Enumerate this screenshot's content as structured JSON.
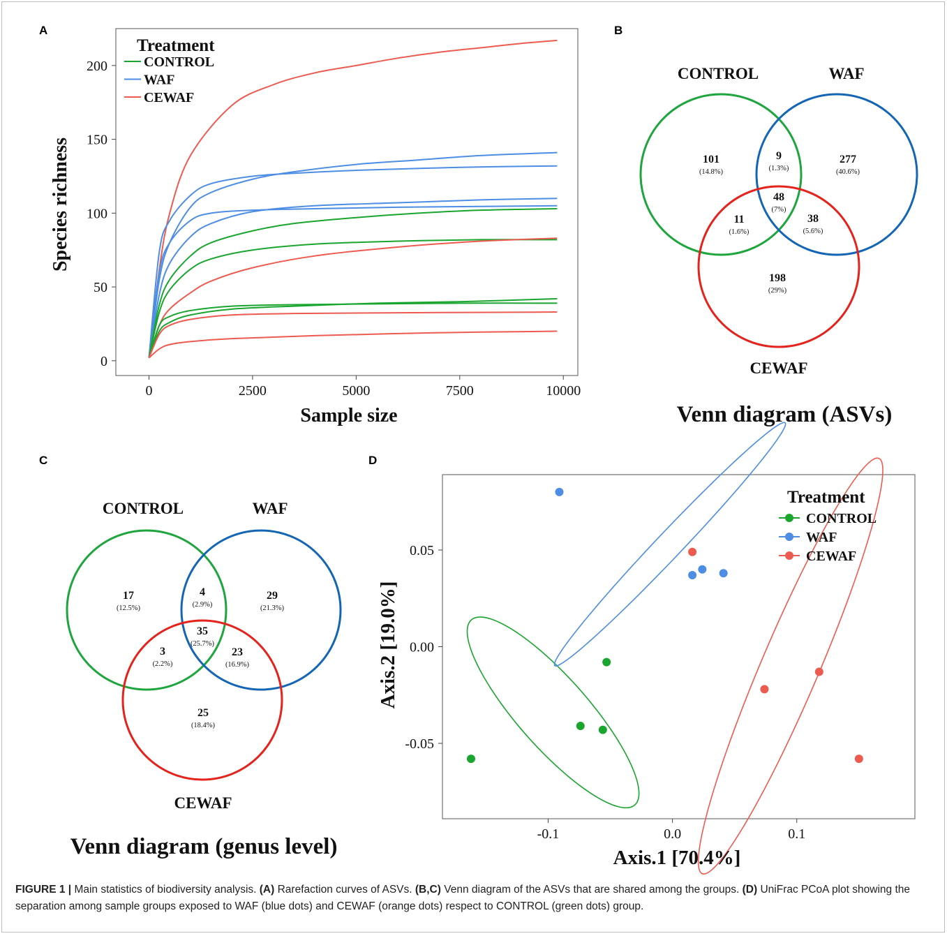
{
  "panels": {
    "A": {
      "letter": "A",
      "chart_data": {
        "type": "line",
        "xlabel": "Sample size",
        "ylabel": "Species richness",
        "xlim": [
          -800,
          10350
        ],
        "ylim": [
          -10,
          225
        ],
        "x_ticks": [
          0,
          2500,
          5000,
          7500,
          10000
        ],
        "y_ticks": [
          0,
          50,
          100,
          150,
          200
        ],
        "x_tick_labels": [
          "0",
          "2500",
          "5000",
          "7500",
          "10000"
        ],
        "y_tick_labels": [
          "0",
          "50",
          "100",
          "150",
          "200"
        ],
        "grid": false,
        "legend": {
          "title": "Treatment",
          "placement": "top-left",
          "items": [
            {
              "label": "CONTROL",
              "color": "#1aa52e"
            },
            {
              "label": "WAF",
              "color": "#4d8de4"
            },
            {
              "label": "CEWAF",
              "color": "#ec5b4f"
            }
          ]
        },
        "series": [
          {
            "group": "CEWAF",
            "color": "#ec5b4f",
            "points": [
              [
                0,
                2
              ],
              [
                250,
                62
              ],
              [
                500,
                100
              ],
              [
                1000,
                139
              ],
              [
                2000,
                173
              ],
              [
                3000,
                187
              ],
              [
                4000,
                195
              ],
              [
                5000,
                200
              ],
              [
                6000,
                205
              ],
              [
                7000,
                209
              ],
              [
                8000,
                212
              ],
              [
                9000,
                215
              ],
              [
                9850,
                217
              ]
            ]
          },
          {
            "group": "WAF",
            "color": "#4d8de4",
            "points": [
              [
                0,
                2
              ],
              [
                250,
                55
              ],
              [
                500,
                80
              ],
              [
                1000,
                104
              ],
              [
                1500,
                114
              ],
              [
                2500,
                123
              ],
              [
                3500,
                128
              ],
              [
                5000,
                133
              ],
              [
                6500,
                136
              ],
              [
                8000,
                139
              ],
              [
                9850,
                141
              ]
            ]
          },
          {
            "group": "WAF",
            "color": "#4d8de4",
            "points": [
              [
                0,
                2
              ],
              [
                250,
                74
              ],
              [
                500,
                95
              ],
              [
                1000,
                112
              ],
              [
                1500,
                120
              ],
              [
                2500,
                125
              ],
              [
                3500,
                127
              ],
              [
                5000,
                129
              ],
              [
                7500,
                131
              ],
              [
                9850,
                132
              ]
            ]
          },
          {
            "group": "WAF",
            "color": "#4d8de4",
            "points": [
              [
                0,
                2
              ],
              [
                250,
                45
              ],
              [
                500,
                66
              ],
              [
                1000,
                84
              ],
              [
                1500,
                93
              ],
              [
                2500,
                101
              ],
              [
                4000,
                105
              ],
              [
                6000,
                107
              ],
              [
                8000,
                109
              ],
              [
                9850,
                110
              ]
            ]
          },
          {
            "group": "WAF",
            "color": "#4d8de4",
            "points": [
              [
                0,
                2
              ],
              [
                250,
                60
              ],
              [
                500,
                80
              ],
              [
                1000,
                95
              ],
              [
                1500,
                100
              ],
              [
                2500,
                102
              ],
              [
                4000,
                103
              ],
              [
                6000,
                104
              ],
              [
                9850,
                105
              ]
            ]
          },
          {
            "group": "CONTROL",
            "color": "#1aa52e",
            "points": [
              [
                0,
                2
              ],
              [
                250,
                38
              ],
              [
                500,
                55
              ],
              [
                1000,
                71
              ],
              [
                1500,
                80
              ],
              [
                2500,
                88
              ],
              [
                3500,
                93
              ],
              [
                5000,
                97
              ],
              [
                6500,
                100
              ],
              [
                8000,
                102
              ],
              [
                9850,
                103
              ]
            ]
          },
          {
            "group": "CONTROL",
            "color": "#1aa52e",
            "points": [
              [
                0,
                2
              ],
              [
                250,
                33
              ],
              [
                500,
                48
              ],
              [
                1000,
                62
              ],
              [
                1500,
                69
              ],
              [
                2500,
                75
              ],
              [
                4000,
                79
              ],
              [
                6000,
                81
              ],
              [
                8000,
                82
              ],
              [
                9850,
                82
              ]
            ]
          },
          {
            "group": "CEWAF",
            "color": "#ec5b4f",
            "points": [
              [
                0,
                2
              ],
              [
                250,
                24
              ],
              [
                500,
                35
              ],
              [
                1000,
                46
              ],
              [
                1500,
                54
              ],
              [
                2500,
                63
              ],
              [
                4000,
                71
              ],
              [
                6000,
                77
              ],
              [
                8000,
                81
              ],
              [
                9850,
                83
              ]
            ]
          },
          {
            "group": "CONTROL",
            "color": "#1aa52e",
            "points": [
              [
                0,
                2
              ],
              [
                250,
                20
              ],
              [
                500,
                26
              ],
              [
                1000,
                31
              ],
              [
                2000,
                35
              ],
              [
                3500,
                37
              ],
              [
                5500,
                39
              ],
              [
                7500,
                40
              ],
              [
                9850,
                42
              ]
            ]
          },
          {
            "group": "CONTROL",
            "color": "#1aa52e",
            "points": [
              [
                0,
                2
              ],
              [
                250,
                24
              ],
              [
                500,
                30
              ],
              [
                1000,
                34
              ],
              [
                2000,
                37
              ],
              [
                3500,
                38
              ],
              [
                5500,
                38.5
              ],
              [
                7500,
                39
              ],
              [
                9850,
                39
              ]
            ]
          },
          {
            "group": "CEWAF",
            "color": "#ec5b4f",
            "points": [
              [
                0,
                2
              ],
              [
                250,
                18
              ],
              [
                500,
                24
              ],
              [
                1000,
                28
              ],
              [
                2000,
                31
              ],
              [
                3500,
                32
              ],
              [
                6000,
                32.5
              ],
              [
                9850,
                33
              ]
            ]
          },
          {
            "group": "CEWAF",
            "color": "#ec5b4f",
            "points": [
              [
                0,
                2
              ],
              [
                250,
                8
              ],
              [
                500,
                11
              ],
              [
                1000,
                13
              ],
              [
                2000,
                15
              ],
              [
                4000,
                17
              ],
              [
                7000,
                19
              ],
              [
                9850,
                20
              ]
            ]
          }
        ]
      }
    },
    "B": {
      "letter": "B",
      "labels": {
        "control": "CONTROL",
        "waf": "WAF",
        "cewaf": "CEWAF"
      },
      "title": "Venn diagram (ASVs)",
      "colors": {
        "control": "#1fa53d",
        "waf": "#1565b5",
        "cewaf": "#e3231c"
      },
      "regions": [
        {
          "id": "control-only",
          "count": "101",
          "pct": "(14.8%)"
        },
        {
          "id": "control-waf",
          "count": "9",
          "pct": "(1.3%)"
        },
        {
          "id": "waf-only",
          "count": "277",
          "pct": "(40.6%)"
        },
        {
          "id": "all-three",
          "count": "48",
          "pct": "(7%)"
        },
        {
          "id": "control-cewaf",
          "count": "11",
          "pct": "(1.6%)"
        },
        {
          "id": "waf-cewaf",
          "count": "38",
          "pct": "(5.6%)"
        },
        {
          "id": "cewaf-only",
          "count": "198",
          "pct": "(29%)"
        }
      ]
    },
    "C": {
      "letter": "C",
      "labels": {
        "control": "CONTROL",
        "waf": "WAF",
        "cewaf": "CEWAF"
      },
      "title": "Venn diagram (genus level)",
      "colors": {
        "control": "#1fa53d",
        "waf": "#1565b5",
        "cewaf": "#e3231c"
      },
      "regions": [
        {
          "id": "control-only",
          "count": "17",
          "pct": "(12.5%)"
        },
        {
          "id": "control-waf",
          "count": "4",
          "pct": "(2.9%)"
        },
        {
          "id": "waf-only",
          "count": "29",
          "pct": "(21.3%)"
        },
        {
          "id": "all-three",
          "count": "35",
          "pct": "(25.7%)"
        },
        {
          "id": "control-cewaf",
          "count": "3",
          "pct": "(2.2%)"
        },
        {
          "id": "waf-cewaf",
          "count": "23",
          "pct": "(16.9%)"
        },
        {
          "id": "cewaf-only",
          "count": "25",
          "pct": "(18.4%)"
        }
      ]
    },
    "D": {
      "letter": "D",
      "chart_data": {
        "type": "scatter",
        "xlabel": "Axis.1 [70.4%]",
        "ylabel": "Axis.2 [19.0%]",
        "xlim": [
          -0.185,
          0.195
        ],
        "ylim": [
          -0.089,
          0.089
        ],
        "x_ticks": [
          -0.1,
          0.0,
          0.1
        ],
        "y_ticks": [
          -0.05,
          0.0,
          0.05
        ],
        "x_tick_labels": [
          "-0.1",
          "0.0",
          "0.1"
        ],
        "y_tick_labels": [
          "-0.05",
          "0.00",
          "0.05"
        ],
        "grid": false,
        "legend": {
          "title": "Treatment",
          "placement": "top-right",
          "items": [
            {
              "label": "CONTROL",
              "color": "#1aa52e"
            },
            {
              "label": "WAF",
              "color": "#4d8de4"
            },
            {
              "label": "CEWAF",
              "color": "#ec5b4f"
            }
          ]
        },
        "series": [
          {
            "name": "CONTROL",
            "color": "#1aa52e",
            "points": [
              [
                -0.162,
                -0.058
              ],
              [
                -0.074,
                -0.041
              ],
              [
                -0.056,
                -0.043
              ],
              [
                -0.053,
                -0.008
              ]
            ]
          },
          {
            "name": "WAF",
            "color": "#4d8de4",
            "points": [
              [
                -0.091,
                0.08
              ],
              [
                0.016,
                0.037
              ],
              [
                0.024,
                0.04
              ],
              [
                0.041,
                0.038
              ]
            ]
          },
          {
            "name": "CEWAF",
            "color": "#ec5b4f",
            "points": [
              [
                0.016,
                0.049
              ],
              [
                0.074,
                -0.022
              ],
              [
                0.118,
                -0.013
              ],
              [
                0.15,
                -0.058
              ]
            ]
          }
        ],
        "ellipses": [
          {
            "group": "CONTROL",
            "color": "#1aa52e",
            "cx": -0.096,
            "cy": -0.034,
            "rx": 0.082,
            "ry": 0.022,
            "angle_deg": -34
          },
          {
            "group": "WAF",
            "color": "#4d8de4",
            "cx": -0.002,
            "cy": 0.053,
            "rx": 0.112,
            "ry": 0.008,
            "angle_deg": 34
          },
          {
            "group": "CEWAF",
            "color": "#ec5b4f",
            "cx": 0.095,
            "cy": -0.01,
            "rx": 0.129,
            "ry": 0.021,
            "angle_deg": 56
          }
        ]
      }
    }
  },
  "caption": {
    "lead": "FIGURE 1 | ",
    "text1": "Main statistics of biodiversity analysis. ",
    "a": "(A)",
    "text2": " Rarefaction curves of ASVs. ",
    "bc": "(B,C)",
    "text3": " Venn diagram of the ASVs that are shared among the groups. ",
    "d": "(D)",
    "text4": " UniFrac PCoA plot showing the separation among sample groups exposed to WAF (blue dots) and CEWAF (orange dots) respect to CONTROL (green dots) group."
  }
}
